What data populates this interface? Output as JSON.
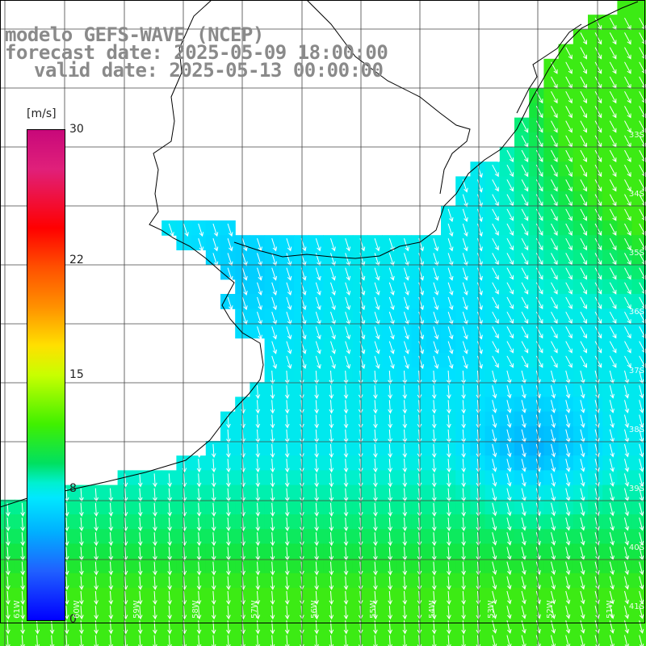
{
  "title": {
    "line1": "modelo GEFS-WAVE (NCEP)",
    "line2": "forecast date: 2025-05-09 18:00:00",
    "line3": "valid date: 2025-05-13 00:00:00"
  },
  "colorbar": {
    "units": "[m/s]",
    "min": 0,
    "max": 30,
    "ticks": [
      {
        "value": 30,
        "label": "30"
      },
      {
        "value": 22,
        "label": "22"
      },
      {
        "value": 15,
        "label": "15"
      },
      {
        "value": 8,
        "label": "8"
      },
      {
        "value": 0,
        "label": "0"
      }
    ]
  },
  "axes": {
    "longitude_labels": [
      "61W",
      "60W",
      "59W",
      "58W",
      "57W",
      "56W",
      "55W",
      "54W",
      "53W",
      "52W",
      "51W"
    ],
    "latitude_labels": [
      "33S",
      "34S",
      "35S",
      "36S",
      "37S",
      "38S",
      "39S",
      "40S",
      "41S"
    ]
  },
  "wind": {
    "dominant_direction": "toward south-southwest",
    "arrow_color": "#ffffff"
  },
  "colors": {
    "land": "#ffffff",
    "coastline": "#000000",
    "grid": "#444444",
    "title_text": "#8a8a8a"
  }
}
